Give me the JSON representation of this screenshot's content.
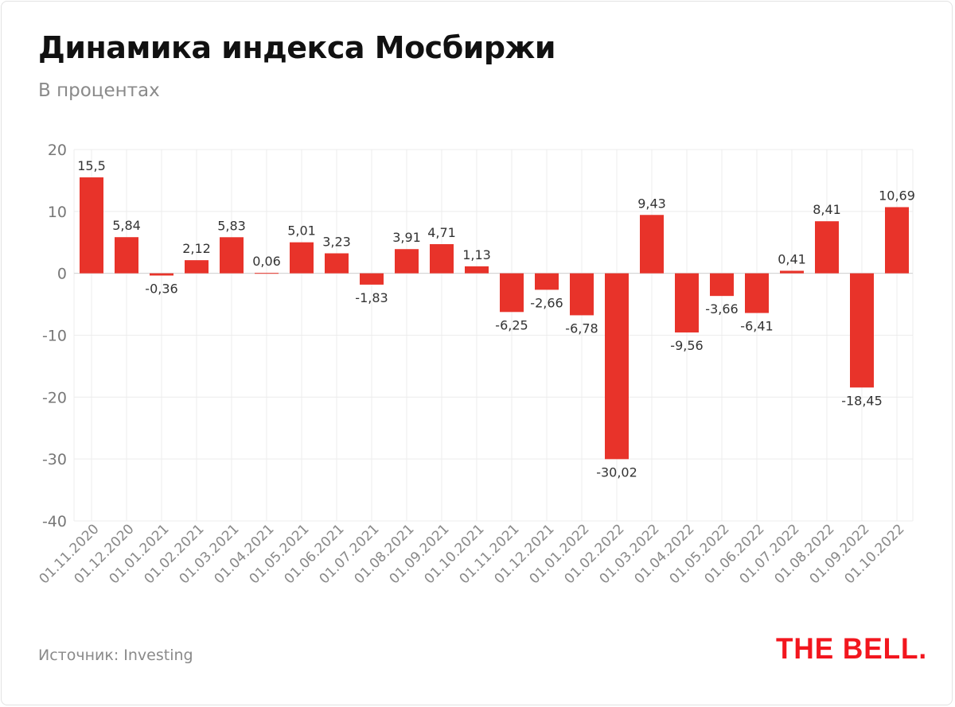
{
  "title": "Динамика индекса Мосбиржи",
  "subtitle": "В процентах",
  "source": "Источник: Investing",
  "logo": "THE BELL.",
  "colors": {
    "bar": "#e8332a",
    "logo": "#f2161e"
  },
  "chart_data": {
    "type": "bar",
    "title": "Динамика индекса Мосбиржи",
    "subtitle": "В процентах",
    "xlabel": "",
    "ylabel": "",
    "ylim": [
      -40,
      20
    ],
    "yticks": [
      20,
      10,
      0,
      -10,
      -20,
      -30,
      -40
    ],
    "grid": true,
    "categories": [
      "01.11.2020",
      "01.12.2020",
      "01.01.2021",
      "01.02.2021",
      "01.03.2021",
      "01.04.2021",
      "01.05.2021",
      "01.06.2021",
      "01.07.2021",
      "01.08.2021",
      "01.09.2021",
      "01.10.2021",
      "01.11.2021",
      "01.12.2021",
      "01.01.2022",
      "01.02.2022",
      "01.03.2022",
      "01.04.2022",
      "01.05.2022",
      "01.06.2022",
      "01.07.2022",
      "01.08.2022",
      "01.09.2022",
      "01.10.2022"
    ],
    "values": [
      15.5,
      5.84,
      -0.36,
      2.12,
      5.83,
      0.06,
      5.01,
      3.23,
      -1.83,
      3.91,
      4.71,
      1.13,
      -6.25,
      -2.66,
      -6.78,
      -30.02,
      9.43,
      -9.56,
      -3.66,
      -6.41,
      0.41,
      8.41,
      -18.45,
      10.69
    ],
    "value_labels": [
      "15,5",
      "5,84",
      "-0,36",
      "2,12",
      "5,83",
      "0,06",
      "5,01",
      "3,23",
      "-1,83",
      "3,91",
      "4,71",
      "1,13",
      "-6,25",
      "-2,66",
      "-6,78",
      "-30,02",
      "9,43",
      "-9,56",
      "-3,66",
      "-6,41",
      "0,41",
      "8,41",
      "-18,45",
      "10,69"
    ]
  }
}
